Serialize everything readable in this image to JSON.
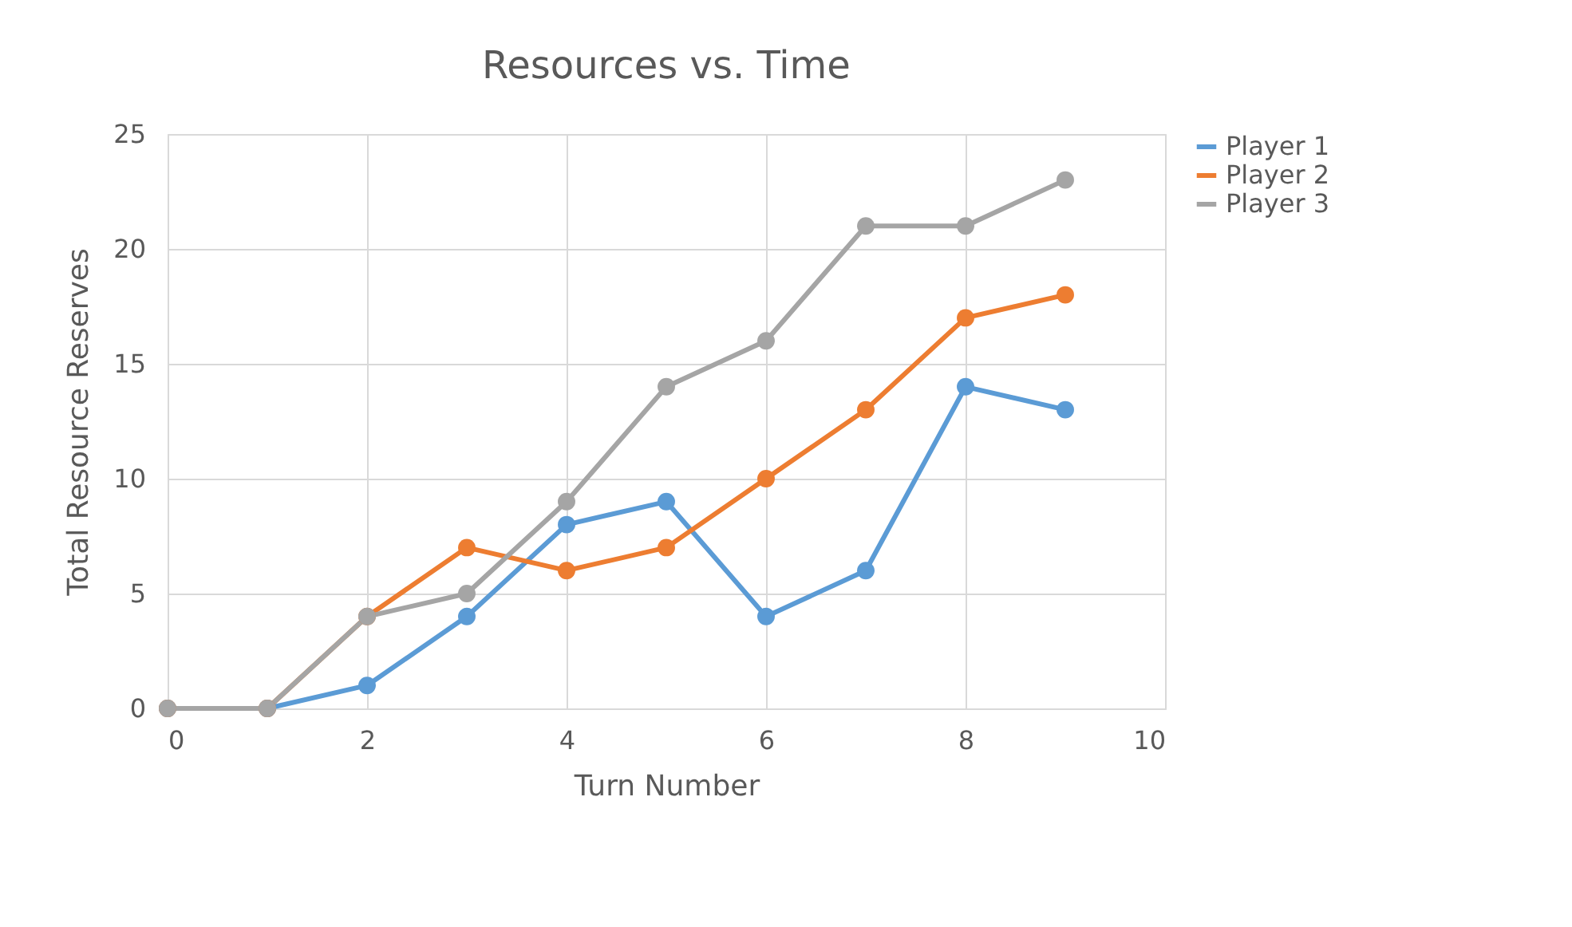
{
  "chart_data": {
    "type": "line",
    "title": "Resources vs. Time",
    "xlabel": "Turn Number",
    "ylabel": "Total Resource Reserves",
    "x": [
      0,
      1,
      2,
      3,
      4,
      5,
      6,
      7,
      8,
      9
    ],
    "series": [
      {
        "name": "Player 1",
        "color": "#5b9bd5",
        "values": [
          0,
          0,
          1,
          4,
          8,
          9,
          4,
          6,
          14,
          13
        ]
      },
      {
        "name": "Player 2",
        "color": "#ed7d31",
        "values": [
          0,
          0,
          4,
          7,
          6,
          7,
          10,
          13,
          17,
          18
        ]
      },
      {
        "name": "Player 3",
        "color": "#a5a5a5",
        "values": [
          0,
          0,
          4,
          5,
          9,
          14,
          16,
          21,
          21,
          23
        ]
      }
    ],
    "xlim": [
      0,
      10
    ],
    "xticks": [
      0,
      2,
      4,
      6,
      8,
      10
    ],
    "ylim": [
      0,
      25
    ],
    "yticks": [
      0,
      5,
      10,
      15,
      20,
      25
    ],
    "grid": true,
    "legend": "right",
    "marker": "circle",
    "line_style": "solid"
  }
}
